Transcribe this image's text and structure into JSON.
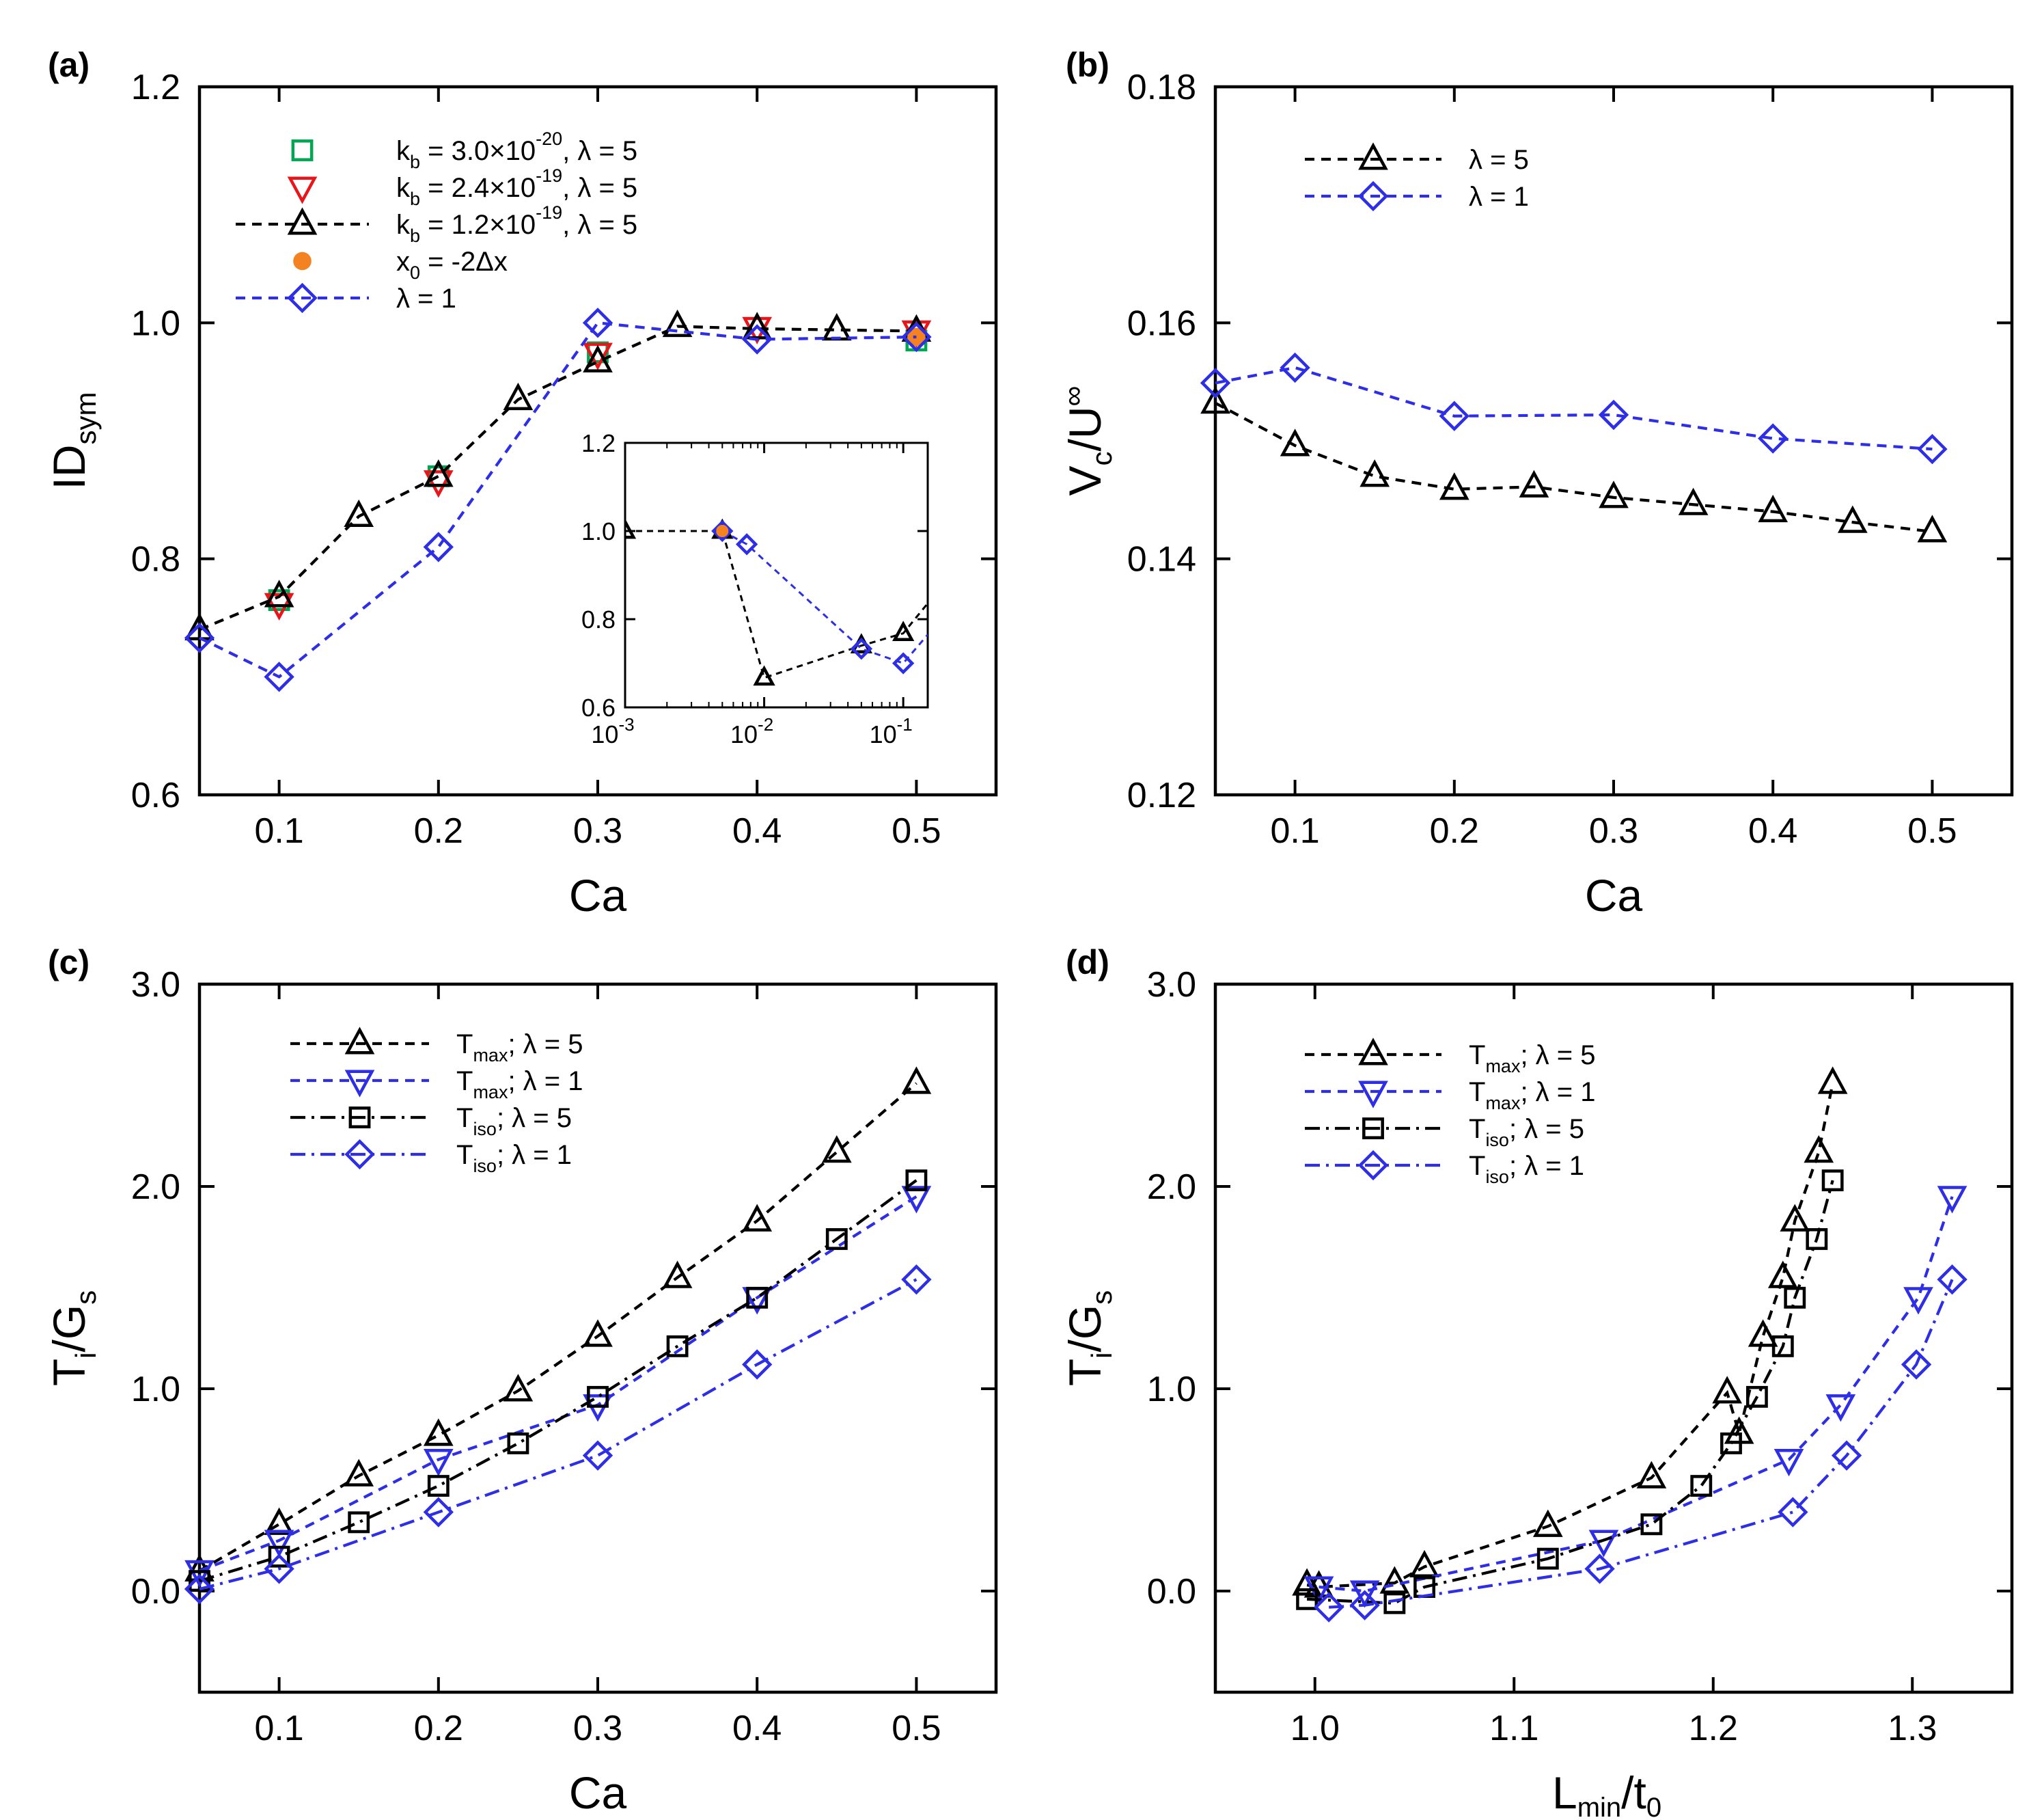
{
  "chart_data": [
    {
      "type": "line",
      "panel": "(a)",
      "xlabel": "Ca",
      "ylabel": {
        "main": "ID",
        "sub": "sym"
      },
      "xlim": [
        0.05,
        0.55
      ],
      "ylim": [
        0.6,
        1.2
      ],
      "xticks": [
        0.1,
        0.2,
        0.3,
        0.4,
        0.5
      ],
      "yticks": [
        0.6,
        0.8,
        1.0,
        1.2
      ],
      "xtick_labels": [
        "0.1",
        "0.2",
        "0.3",
        "0.4",
        "0.5"
      ],
      "ytick_labels": [
        "0.6",
        "0.8",
        "1.0",
        "1.2"
      ],
      "series": [
        {
          "name": "kb3",
          "marker": "square",
          "color": "#00a651",
          "line": "none",
          "x": [
            0.1,
            0.2,
            0.3,
            0.5
          ],
          "y": [
            0.765,
            0.87,
            0.975,
            0.985
          ]
        },
        {
          "name": "kb24",
          "marker": "triangle-down",
          "color": "#e8161b",
          "line": "none",
          "x": [
            0.1,
            0.2,
            0.3,
            0.4,
            0.5
          ],
          "y": [
            0.762,
            0.866,
            0.974,
            0.996,
            0.993
          ]
        },
        {
          "name": "kb12",
          "marker": "triangle-up",
          "color": "#000000",
          "line": "dashed",
          "x": [
            0.05,
            0.1,
            0.15,
            0.2,
            0.25,
            0.3,
            0.35,
            0.4,
            0.45,
            0.5
          ],
          "y": [
            0.74,
            0.768,
            0.836,
            0.87,
            0.935,
            0.967,
            0.997,
            0.995,
            0.994,
            0.993
          ]
        },
        {
          "name": "x0",
          "marker": "circle-filled",
          "color": "#f58220",
          "line": "none",
          "x": [
            0.5
          ],
          "y": [
            0.988
          ]
        },
        {
          "name": "lam1",
          "marker": "diamond",
          "color": "#2e2ee6",
          "line": "dashed",
          "x": [
            0.05,
            0.1,
            0.2,
            0.3,
            0.4,
            0.5
          ],
          "y": [
            0.733,
            0.7,
            0.81,
            1.0,
            0.986,
            0.988
          ]
        }
      ],
      "legend": [
        {
          "pre": "k",
          "sub": "b",
          "mid": " = 3.0×10",
          "sup": "-20",
          "post": ", λ = 5",
          "series": "kb3"
        },
        {
          "pre": "k",
          "sub": "b",
          "mid": " = 2.4×10",
          "sup": "-19",
          "post": ", λ = 5",
          "series": "kb24"
        },
        {
          "pre": "k",
          "sub": "b",
          "mid": " = 1.2×10",
          "sup": "-19",
          "post": ", λ = 5",
          "series": "kb12"
        },
        {
          "pre": "x",
          "sub": "0",
          "mid": " = -2Δx",
          "sup": "",
          "post": "",
          "series": "x0"
        },
        {
          "pre": "λ = 1",
          "sub": "",
          "mid": "",
          "sup": "",
          "post": "",
          "series": "lam1"
        }
      ],
      "inset": {
        "xscale": "log",
        "xlim": [
          0.001,
          0.15
        ],
        "ylim": [
          0.6,
          1.2
        ],
        "xticks": [
          0.001,
          0.01,
          0.1
        ],
        "xtick_labels": [
          {
            "base": "10",
            "exp": "-3"
          },
          {
            "base": "10",
            "exp": "-2"
          },
          {
            "base": "10",
            "exp": "-1"
          }
        ],
        "yticks": [
          0.6,
          0.8,
          1.0,
          1.2
        ],
        "ytick_labels": [
          "0.6",
          "0.8",
          "1.0",
          "1.2"
        ],
        "series": [
          {
            "name": "kb12",
            "marker": "triangle-up",
            "color": "#000000",
            "line": "dashed",
            "x": [
              0.001,
              0.005,
              0.01,
              0.05,
              0.1,
              0.15
            ],
            "y": [
              1.0,
              1.0,
              0.667,
              0.74,
              0.768,
              0.836
            ]
          },
          {
            "name": "lam1",
            "marker": "diamond",
            "color": "#2e2ee6",
            "line": "dashed",
            "x": [
              0.005,
              0.0075,
              0.05,
              0.1,
              0.15
            ],
            "y": [
              1.0,
              0.97,
              0.733,
              0.7,
              0.765
            ]
          },
          {
            "name": "x0",
            "marker": "circle-filled",
            "color": "#f58220",
            "line": "none",
            "x": [
              0.005
            ],
            "y": [
              1.0
            ]
          }
        ]
      }
    },
    {
      "type": "line",
      "panel": "(b)",
      "xlabel": "Ca",
      "ylabel": {
        "pre": "V",
        "sub": "c",
        "mid": "/U",
        "sup": "∞"
      },
      "xlim": [
        0.05,
        0.55
      ],
      "ylim": [
        0.12,
        0.18
      ],
      "xticks": [
        0.1,
        0.2,
        0.3,
        0.4,
        0.5
      ],
      "yticks": [
        0.12,
        0.14,
        0.16,
        0.18
      ],
      "xtick_labels": [
        "0.1",
        "0.2",
        "0.3",
        "0.4",
        "0.5"
      ],
      "ytick_labels": [
        "0.12",
        "0.14",
        "0.16",
        "0.18"
      ],
      "series": [
        {
          "name": "lam5",
          "marker": "triangle-up",
          "color": "#000000",
          "line": "dashed",
          "x": [
            0.05,
            0.1,
            0.15,
            0.2,
            0.25,
            0.3,
            0.35,
            0.4,
            0.45,
            0.5
          ],
          "y": [
            0.1532,
            0.1496,
            0.147,
            0.1459,
            0.1461,
            0.1452,
            0.1446,
            0.144,
            0.1431,
            0.1423
          ]
        },
        {
          "name": "lam1",
          "marker": "diamond",
          "color": "#2e2ee6",
          "line": "dashed",
          "x": [
            0.05,
            0.1,
            0.2,
            0.3,
            0.4,
            0.5
          ],
          "y": [
            0.1549,
            0.1562,
            0.1521,
            0.1522,
            0.1502,
            0.1493
          ]
        }
      ],
      "legend": [
        {
          "pre": "λ = 5",
          "sub": "",
          "mid": "",
          "sup": "",
          "post": "",
          "series": "lam5"
        },
        {
          "pre": "λ = 1",
          "sub": "",
          "mid": "",
          "sup": "",
          "post": "",
          "series": "lam1"
        }
      ]
    },
    {
      "type": "line",
      "panel": "(c)",
      "xlabel": "Ca",
      "ylabel": {
        "pre": "T",
        "sub": "i",
        "mid": "/G",
        "sub2": "s"
      },
      "xlim": [
        0.05,
        0.55
      ],
      "ylim": [
        -0.5,
        3.0
      ],
      "xticks": [
        0.1,
        0.2,
        0.3,
        0.4,
        0.5
      ],
      "yticks": [
        0.0,
        1.0,
        2.0,
        3.0
      ],
      "xtick_labels": [
        "0.1",
        "0.2",
        "0.3",
        "0.4",
        "0.5"
      ],
      "ytick_labels": [
        "0.0",
        "1.0",
        "2.0",
        "3.0"
      ],
      "series": [
        {
          "name": "tmax5",
          "marker": "triangle-up",
          "color": "#000000",
          "line": "dashed",
          "x": [
            0.05,
            0.1,
            0.15,
            0.2,
            0.25,
            0.3,
            0.35,
            0.4,
            0.45,
            0.5
          ],
          "y": [
            0.1,
            0.33,
            0.57,
            0.77,
            0.99,
            1.26,
            1.55,
            1.83,
            2.17,
            2.51
          ]
        },
        {
          "name": "tmax1",
          "marker": "triangle-down",
          "color": "#2e2ee6",
          "line": "dashed",
          "x": [
            0.05,
            0.1,
            0.2,
            0.3,
            0.4,
            0.5
          ],
          "y": [
            0.1,
            0.25,
            0.65,
            0.92,
            1.45,
            1.95
          ]
        },
        {
          "name": "tiso5",
          "marker": "square",
          "color": "#000000",
          "line": "dashdot",
          "x": [
            0.05,
            0.1,
            0.15,
            0.2,
            0.25,
            0.3,
            0.35,
            0.4,
            0.45,
            0.5
          ],
          "y": [
            0.05,
            0.17,
            0.34,
            0.52,
            0.73,
            0.96,
            1.21,
            1.45,
            1.74,
            2.03
          ]
        },
        {
          "name": "tiso1",
          "marker": "diamond",
          "color": "#2e2ee6",
          "line": "dashdot",
          "x": [
            0.05,
            0.1,
            0.2,
            0.3,
            0.4,
            0.5
          ],
          "y": [
            0.01,
            0.11,
            0.39,
            0.67,
            1.12,
            1.54
          ]
        }
      ],
      "legend": [
        {
          "pre": "T",
          "sub": "max",
          "mid": "; λ = 5",
          "sup": "",
          "post": "",
          "series": "tmax5"
        },
        {
          "pre": "T",
          "sub": "max",
          "mid": "; λ = 1",
          "sup": "",
          "post": "",
          "series": "tmax1"
        },
        {
          "pre": "T",
          "sub": "iso",
          "mid": "; λ = 5",
          "sup": "",
          "post": "",
          "series": "tiso5"
        },
        {
          "pre": "T",
          "sub": "iso",
          "mid": "; λ = 1",
          "sup": "",
          "post": "",
          "series": "tiso1"
        }
      ]
    },
    {
      "type": "line",
      "panel": "(d)",
      "xlabel": {
        "pre": "L",
        "sub": "min",
        "mid": "/t",
        "sub2": "0"
      },
      "ylabel": {
        "pre": "T",
        "sub": "i",
        "mid": "/G",
        "sub2": "s"
      },
      "xlim": [
        0.95,
        1.35
      ],
      "ylim": [
        -0.5,
        3.0
      ],
      "xticks": [
        1.0,
        1.1,
        1.2,
        1.3
      ],
      "yticks": [
        0.0,
        1.0,
        2.0,
        3.0
      ],
      "xtick_labels": [
        "1.0",
        "1.1",
        "1.2",
        "1.3"
      ],
      "ytick_labels": [
        "0.0",
        "1.0",
        "2.0",
        "3.0"
      ],
      "series": [
        {
          "name": "tmax5",
          "marker": "triangle-up",
          "color": "#000000",
          "line": "dashed",
          "x": [
            0.996,
            1.002,
            1.04,
            1.055,
            1.117,
            1.169,
            1.207,
            1.213,
            1.225,
            1.235,
            1.241,
            1.253,
            1.26
          ],
          "y": [
            0.03,
            0.02,
            0.04,
            0.12,
            0.32,
            0.56,
            0.98,
            0.78,
            1.26,
            1.55,
            1.83,
            2.17,
            2.51
          ]
        },
        {
          "name": "tmax1",
          "marker": "triangle-down",
          "color": "#2e2ee6",
          "line": "dashed",
          "x": [
            1.002,
            1.025,
            1.145,
            1.238,
            1.264,
            1.303,
            1.32
          ],
          "y": [
            0.02,
            0.0,
            0.25,
            0.65,
            0.92,
            1.45,
            1.95
          ]
        },
        {
          "name": "tiso5",
          "marker": "square",
          "color": "#000000",
          "line": "dashdot",
          "x": [
            0.996,
            1.04,
            1.055,
            1.117,
            1.169,
            1.194,
            1.209,
            1.222,
            1.235,
            1.241,
            1.252,
            1.26
          ],
          "y": [
            -0.04,
            -0.06,
            0.02,
            0.16,
            0.33,
            0.52,
            0.73,
            0.96,
            1.21,
            1.45,
            1.74,
            2.03
          ]
        },
        {
          "name": "tiso1",
          "marker": "diamond",
          "color": "#2e2ee6",
          "line": "dashdot",
          "x": [
            1.007,
            1.025,
            1.143,
            1.24,
            1.267,
            1.302,
            1.32
          ],
          "y": [
            -0.08,
            -0.07,
            0.11,
            0.39,
            0.67,
            1.12,
            1.54
          ]
        }
      ],
      "legend": [
        {
          "pre": "T",
          "sub": "max",
          "mid": "; λ = 5",
          "sup": "",
          "post": "",
          "series": "tmax5"
        },
        {
          "pre": "T",
          "sub": "max",
          "mid": "; λ = 1",
          "sup": "",
          "post": "",
          "series": "tmax1"
        },
        {
          "pre": "T",
          "sub": "iso",
          "mid": "; λ = 5",
          "sup": "",
          "post": "",
          "series": "tiso5"
        },
        {
          "pre": "T",
          "sub": "iso",
          "mid": "; λ = 1",
          "sup": "",
          "post": "",
          "series": "tiso1"
        }
      ]
    }
  ]
}
